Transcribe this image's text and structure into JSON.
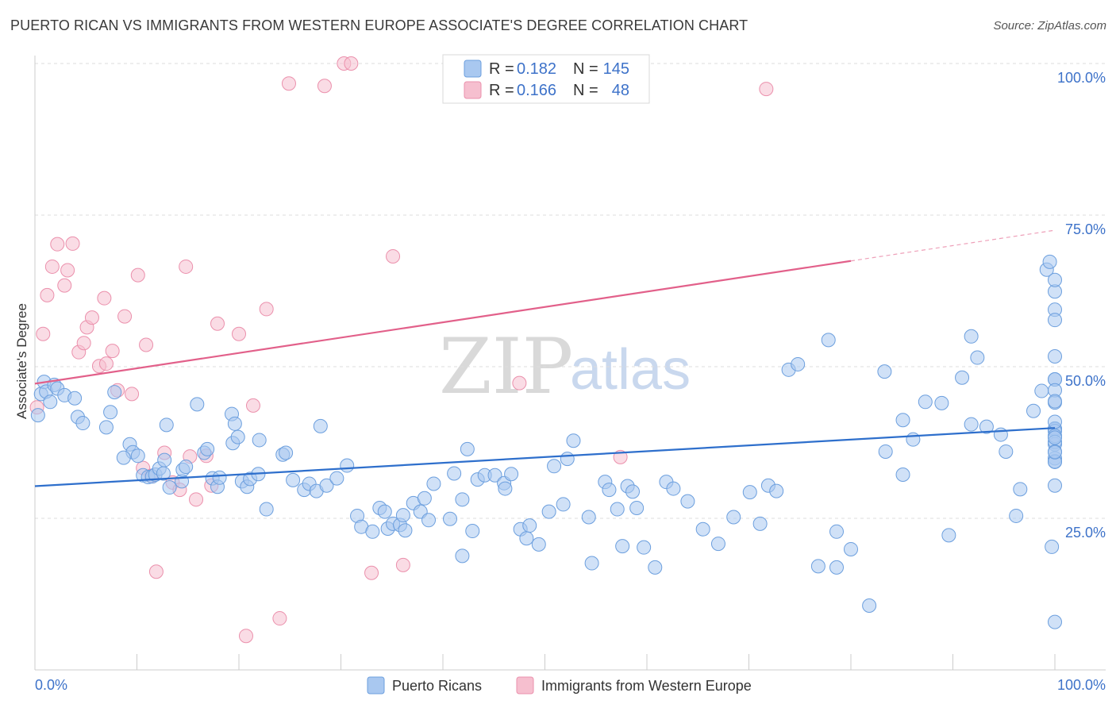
{
  "title": "PUERTO RICAN VS IMMIGRANTS FROM WESTERN EUROPE ASSOCIATE'S DEGREE CORRELATION CHART",
  "source": "Source: ZipAtlas.com",
  "watermark": {
    "zip": "ZIP",
    "atlas": "atlas"
  },
  "legend": {
    "r_label": "R =",
    "n_label": "N =",
    "series": [
      {
        "name": "Puerto Ricans",
        "r": "0.182",
        "n": "145"
      },
      {
        "name": "Immigrants from Western Europe",
        "r": "0.166",
        "n": "48"
      }
    ]
  },
  "colors": {
    "blue_fill": "#a9c8f0",
    "blue_stroke": "#6c9fde",
    "blue_line": "#2e6fcc",
    "pink_fill": "#f6bfcf",
    "pink_stroke": "#eb90ac",
    "pink_line": "#e2608a",
    "grid": "#dddddd",
    "tick_text": "#3d72c9"
  },
  "chart_data": {
    "type": "scatter",
    "title": "PUERTO RICAN VS IMMIGRANTS FROM WESTERN EUROPE ASSOCIATE'S DEGREE CORRELATION CHART",
    "xlabel": "",
    "ylabel": "Associate's Degree",
    "xlim": [
      0,
      100
    ],
    "ylim": [
      0,
      100
    ],
    "x_tick_labels": [
      "0.0%",
      "100.0%"
    ],
    "y_tick_labels": [
      "25.0%",
      "50.0%",
      "75.0%",
      "100.0%"
    ],
    "y_ticks": [
      25,
      50,
      75,
      100
    ],
    "series": [
      {
        "name": "Puerto Ricans",
        "trend": {
          "x0": 0,
          "y0": 30.3,
          "x1": 100,
          "y1": 39.9,
          "x_end": 100
        },
        "points": [
          [
            0.3,
            42
          ],
          [
            0.6,
            45.5
          ],
          [
            0.9,
            47.5
          ],
          [
            1.1,
            45.9
          ],
          [
            1.5,
            44.2
          ],
          [
            1.9,
            47
          ],
          [
            2.2,
            46.4
          ],
          [
            2.9,
            45.3
          ],
          [
            3.9,
            44.8
          ],
          [
            4.2,
            41.7
          ],
          [
            4.7,
            40.7
          ],
          [
            7,
            40
          ],
          [
            7.4,
            42.5
          ],
          [
            7.8,
            45.8
          ],
          [
            9.3,
            37.2
          ],
          [
            9.6,
            35.9
          ],
          [
            8.7,
            35
          ],
          [
            10.1,
            35.3
          ],
          [
            10.6,
            32.1
          ],
          [
            11.1,
            31.8
          ],
          [
            11.5,
            31.9
          ],
          [
            11.8,
            32.2
          ],
          [
            12.2,
            33.2
          ],
          [
            12.6,
            32.4
          ],
          [
            12.7,
            34.6
          ],
          [
            12.9,
            40.4
          ],
          [
            13.2,
            30.1
          ],
          [
            14.4,
            31.1
          ],
          [
            14.5,
            33
          ],
          [
            14.8,
            33.5
          ],
          [
            15.9,
            43.8
          ],
          [
            16.6,
            35.8
          ],
          [
            16.9,
            36.4
          ],
          [
            17.4,
            31.6
          ],
          [
            17.9,
            30.2
          ],
          [
            18.1,
            31.7
          ],
          [
            19.3,
            42.2
          ],
          [
            19.4,
            37.4
          ],
          [
            19.9,
            38.4
          ],
          [
            19.6,
            40.6
          ],
          [
            20.3,
            31.1
          ],
          [
            20.8,
            30.2
          ],
          [
            21.1,
            31.5
          ],
          [
            21.9,
            32.3
          ],
          [
            22,
            37.9
          ],
          [
            22.7,
            26.5
          ],
          [
            24.3,
            35.5
          ],
          [
            24.6,
            35.8
          ],
          [
            25.3,
            31.3
          ],
          [
            26.4,
            29.7
          ],
          [
            26.9,
            30.7
          ],
          [
            27.6,
            29.5
          ],
          [
            28,
            40.2
          ],
          [
            28.6,
            30.4
          ],
          [
            29.6,
            31.6
          ],
          [
            30.6,
            33.7
          ],
          [
            31.6,
            25.4
          ],
          [
            32,
            23.6
          ],
          [
            33.1,
            22.8
          ],
          [
            33.8,
            26.7
          ],
          [
            34.3,
            26.1
          ],
          [
            34.6,
            23.3
          ],
          [
            35.1,
            24.1
          ],
          [
            35.8,
            23.9
          ],
          [
            36.3,
            23
          ],
          [
            36.1,
            25.5
          ],
          [
            37.1,
            27.5
          ],
          [
            37.8,
            26.1
          ],
          [
            38.2,
            28.3
          ],
          [
            38.6,
            24.7
          ],
          [
            39.1,
            30.7
          ],
          [
            40.7,
            24.9
          ],
          [
            41.1,
            32.4
          ],
          [
            41.9,
            28.1
          ],
          [
            41.9,
            18.8
          ],
          [
            42.4,
            36.4
          ],
          [
            42.9,
            22.9
          ],
          [
            43.4,
            31.4
          ],
          [
            44.1,
            32.1
          ],
          [
            45.1,
            32.1
          ],
          [
            46,
            30.8
          ],
          [
            46.1,
            29.9
          ],
          [
            46.7,
            32.3
          ],
          [
            47.6,
            23.2
          ],
          [
            48.2,
            21.7
          ],
          [
            48.5,
            23.8
          ],
          [
            49.4,
            20.7
          ],
          [
            50.4,
            26.1
          ],
          [
            50.9,
            33.6
          ],
          [
            51.8,
            27.3
          ],
          [
            52.2,
            34.8
          ],
          [
            52.8,
            37.8
          ],
          [
            54.3,
            25.2
          ],
          [
            54.6,
            17.6
          ],
          [
            55.9,
            31
          ],
          [
            56.3,
            29.7
          ],
          [
            57.1,
            26.5
          ],
          [
            57.6,
            20.4
          ],
          [
            58.1,
            30.3
          ],
          [
            58.6,
            29.4
          ],
          [
            59,
            26.7
          ],
          [
            59.7,
            20.2
          ],
          [
            60.8,
            16.9
          ],
          [
            61.9,
            31
          ],
          [
            62.6,
            29.9
          ],
          [
            64,
            27.8
          ],
          [
            65.5,
            23.2
          ],
          [
            67,
            20.8
          ],
          [
            68.5,
            25.2
          ],
          [
            70.1,
            29.3
          ],
          [
            71.1,
            24.1
          ],
          [
            71.9,
            30.4
          ],
          [
            72.7,
            29.5
          ],
          [
            73.9,
            49.5
          ],
          [
            74.8,
            50.4
          ],
          [
            76.8,
            17.1
          ],
          [
            77.8,
            54.4
          ],
          [
            78.6,
            16.9
          ],
          [
            78.6,
            22.8
          ],
          [
            80,
            19.9
          ],
          [
            81.8,
            10.6
          ],
          [
            83.3,
            49.2
          ],
          [
            83.4,
            36
          ],
          [
            85.1,
            32.2
          ],
          [
            85.1,
            41.2
          ],
          [
            86.1,
            38
          ],
          [
            87.3,
            44.2
          ],
          [
            88.9,
            44
          ],
          [
            89.6,
            22.2
          ],
          [
            90.9,
            48.2
          ],
          [
            91.8,
            55
          ],
          [
            91.8,
            40.5
          ],
          [
            92.4,
            51.5
          ],
          [
            93.3,
            40.1
          ],
          [
            94.7,
            38.8
          ],
          [
            95.2,
            36
          ],
          [
            96.2,
            25.4
          ],
          [
            96.6,
            29.8
          ],
          [
            97.9,
            42.7
          ],
          [
            98.7,
            46
          ],
          [
            99.2,
            66
          ],
          [
            99.5,
            67.3
          ],
          [
            99.7,
            20.3
          ],
          [
            100,
            47.9
          ],
          [
            100,
            7.9
          ],
          [
            100,
            39.7
          ],
          [
            100,
            34.9
          ],
          [
            100,
            39.8
          ],
          [
            100,
            37.2
          ],
          [
            100,
            34.4
          ],
          [
            100,
            39.4
          ],
          [
            100,
            62.4
          ],
          [
            100,
            64.3
          ],
          [
            100,
            59.4
          ],
          [
            100,
            51.7
          ],
          [
            100,
            57.7
          ],
          [
            100,
            47.9
          ],
          [
            100,
            46.1
          ],
          [
            100,
            40.9
          ],
          [
            100,
            38.6
          ],
          [
            100,
            44.1
          ],
          [
            100,
            34.3
          ],
          [
            100,
            37.6
          ],
          [
            100,
            38.3
          ],
          [
            100,
            36
          ],
          [
            100,
            35.9
          ],
          [
            100,
            30.4
          ],
          [
            100,
            44.3
          ]
        ]
      },
      {
        "name": "Immigrants from Western Europe",
        "trend": {
          "x0": 0,
          "y0": 47.2,
          "x1": 100,
          "y1": 72.5,
          "x_end": 80
        },
        "points": [
          [
            0.2,
            43.3
          ],
          [
            0.8,
            55.4
          ],
          [
            1.2,
            61.8
          ],
          [
            1.7,
            66.5
          ],
          [
            2.2,
            70.2
          ],
          [
            2.9,
            63.4
          ],
          [
            3.2,
            65.9
          ],
          [
            3.7,
            70.3
          ],
          [
            4.3,
            52.4
          ],
          [
            4.8,
            53.9
          ],
          [
            5.1,
            56.5
          ],
          [
            5.6,
            58.1
          ],
          [
            6.3,
            50.1
          ],
          [
            6.8,
            61.3
          ],
          [
            7,
            50.5
          ],
          [
            7.6,
            52.6
          ],
          [
            8.1,
            46.1
          ],
          [
            8.8,
            58.3
          ],
          [
            9.5,
            45.5
          ],
          [
            10.1,
            65.1
          ],
          [
            10.6,
            33.3
          ],
          [
            10.9,
            53.6
          ],
          [
            11.4,
            32
          ],
          [
            11.9,
            16.2
          ],
          [
            12.7,
            35.8
          ],
          [
            13.5,
            30.9
          ],
          [
            14.2,
            29.7
          ],
          [
            14.8,
            66.5
          ],
          [
            15.2,
            35.2
          ],
          [
            15.8,
            28.1
          ],
          [
            16.8,
            35.3
          ],
          [
            17.3,
            30.4
          ],
          [
            17.9,
            57.1
          ],
          [
            20,
            55.4
          ],
          [
            20.7,
            5.6
          ],
          [
            21.4,
            43.6
          ],
          [
            22.7,
            59.5
          ],
          [
            24,
            8.5
          ],
          [
            24.9,
            96.7
          ],
          [
            28.4,
            96.3
          ],
          [
            30.3,
            100
          ],
          [
            31,
            100
          ],
          [
            33,
            16
          ],
          [
            35.1,
            68.2
          ],
          [
            36.1,
            17.3
          ],
          [
            47.5,
            47.3
          ],
          [
            57.4,
            35.1
          ],
          [
            71.7,
            95.8
          ]
        ]
      }
    ]
  },
  "axis": {
    "ylabel": "Associate's Degree",
    "x_left": "0.0%",
    "x_right": "100.0%"
  }
}
